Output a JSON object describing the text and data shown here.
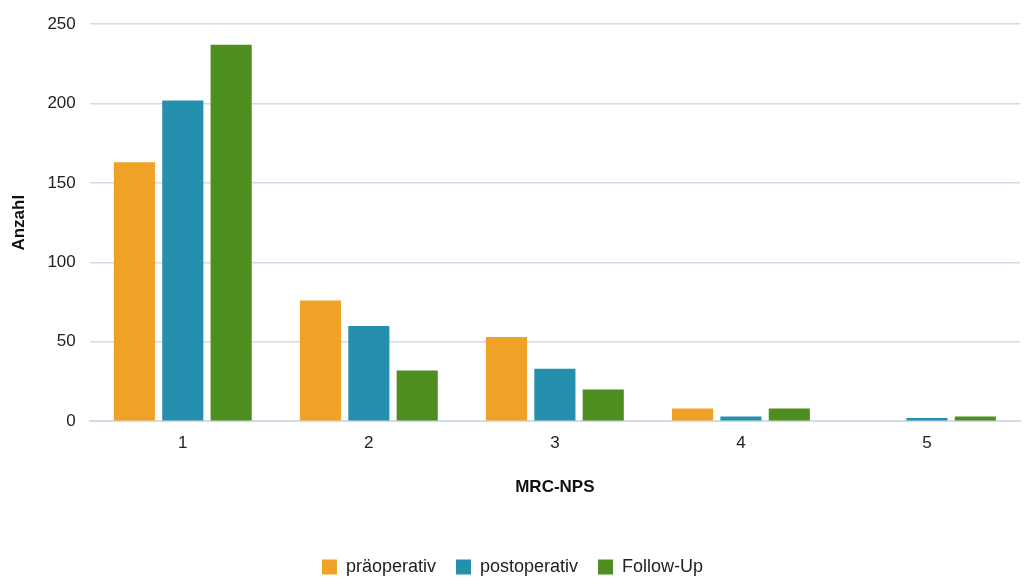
{
  "chart_data": {
    "type": "bar",
    "xlabel": "MRC-NPS",
    "ylabel": "Anzahl",
    "categories": [
      "1",
      "2",
      "3",
      "4",
      "5"
    ],
    "series": [
      {
        "name": "präoperativ",
        "color": "#efa226",
        "values": [
          163,
          76,
          53,
          8,
          0
        ]
      },
      {
        "name": "postoperativ",
        "color": "#2590ad",
        "values": [
          202,
          60,
          33,
          3,
          2
        ]
      },
      {
        "name": "Follow-Up",
        "color": "#4d8e1f",
        "values": [
          237,
          32,
          20,
          8,
          3
        ]
      }
    ],
    "ylim": [
      0,
      250
    ],
    "yticks": [
      0,
      50,
      100,
      150,
      200,
      250
    ],
    "grid": "y",
    "legend": "bottom"
  }
}
